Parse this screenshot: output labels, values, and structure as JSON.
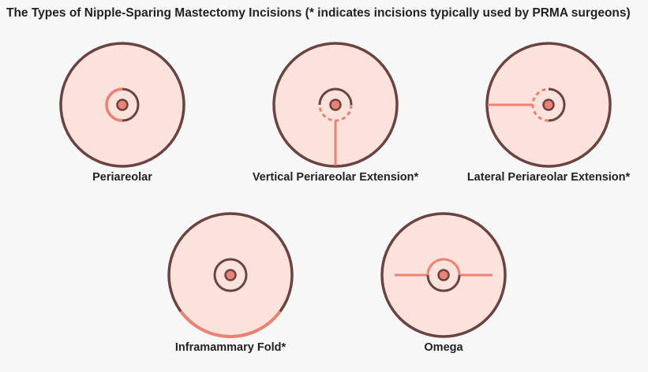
{
  "title": "The Types of Nipple-Sparing Mastectomy Incisions (* indicates incisions typically used by PRMA surgeons)",
  "colors": {
    "skin": "#fbe3dc",
    "outline": "#6b4340",
    "incision": "#ec8275",
    "nipple": "#ec8275",
    "background": "#f7f7f8"
  },
  "incisions": [
    {
      "id": "periareolar",
      "label": "Periareolar"
    },
    {
      "id": "vertical",
      "label": "Vertical Periareolar Extension*"
    },
    {
      "id": "lateral",
      "label": "Lateral Periareolar Extension*"
    },
    {
      "id": "inframammary",
      "label": "Inframammary Fold*"
    },
    {
      "id": "omega",
      "label": "Omega"
    }
  ]
}
